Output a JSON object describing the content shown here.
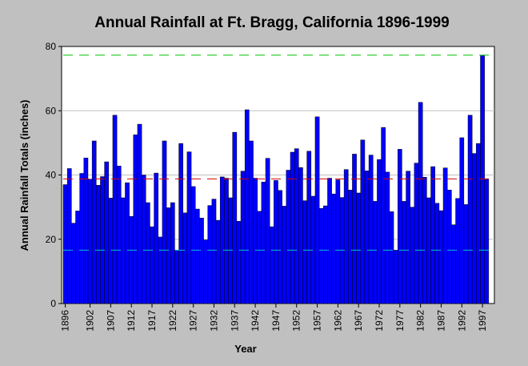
{
  "chart_data": {
    "type": "bar",
    "title": "Annual Rainfall at Ft. Bragg, California 1896-1999",
    "xlabel": "Year",
    "ylabel": "Annual Rainfall Totals (inches)",
    "ylim": [
      0,
      80
    ],
    "yticks": [
      "0",
      "20",
      "40",
      "60",
      "80"
    ],
    "xticks": [
      "1896",
      "1902",
      "1907",
      "1912",
      "1917",
      "1922",
      "1927",
      "1932",
      "1937",
      "1942",
      "1947",
      "1952",
      "1957",
      "1962",
      "1967",
      "1972",
      "1977",
      "1982",
      "1987",
      "1992",
      "1997"
    ],
    "grid": "horizontal",
    "years": [
      1896,
      1897,
      1898,
      1899,
      1900,
      1901,
      1902,
      1903,
      1904,
      1905,
      1906,
      1907,
      1908,
      1909,
      1910,
      1911,
      1912,
      1913,
      1914,
      1915,
      1916,
      1917,
      1918,
      1919,
      1920,
      1921,
      1922,
      1923,
      1924,
      1925,
      1926,
      1927,
      1928,
      1929,
      1930,
      1931,
      1932,
      1933,
      1934,
      1935,
      1936,
      1937,
      1938,
      1939,
      1940,
      1941,
      1942,
      1943,
      1944,
      1945,
      1946,
      1947,
      1948,
      1949,
      1950,
      1951,
      1952,
      1953,
      1954,
      1955,
      1956,
      1957,
      1958,
      1959,
      1960,
      1961,
      1962,
      1963,
      1964,
      1965,
      1966,
      1967,
      1968,
      1969,
      1970,
      1971,
      1972,
      1973,
      1974,
      1975,
      1976,
      1977,
      1978,
      1979,
      1980,
      1981,
      1982,
      1983,
      1984,
      1985,
      1986,
      1987,
      1988,
      1989,
      1990,
      1991,
      1992,
      1993,
      1994,
      1995,
      1996,
      1997,
      1998,
      1999
    ],
    "values": [
      37.0,
      42.0,
      25.0,
      28.8,
      40.5,
      45.3,
      38.7,
      50.6,
      36.8,
      39.5,
      44.1,
      32.8,
      58.6,
      42.8,
      32.9,
      37.6,
      27.1,
      52.5,
      55.8,
      40.0,
      31.4,
      23.9,
      40.6,
      20.7,
      50.6,
      29.8,
      31.4,
      16.6,
      49.8,
      28.2,
      47.2,
      36.4,
      29.4,
      26.6,
      19.8,
      30.5,
      32.5,
      25.9,
      39.4,
      39.0,
      32.9,
      53.3,
      25.6,
      41.2,
      60.3,
      50.6,
      39.0,
      28.7,
      37.8,
      45.2,
      23.9,
      38.3,
      35.2,
      30.3,
      41.5,
      47.1,
      48.2,
      42.3,
      32.0,
      47.4,
      33.4,
      58.1,
      29.6,
      30.4,
      39.0,
      34.1,
      38.5,
      33.0,
      41.7,
      35.3,
      46.5,
      34.4,
      50.9,
      41.3,
      46.2,
      31.8,
      44.8,
      54.8,
      40.9,
      28.6,
      16.6,
      48.0,
      31.8,
      41.2,
      30.0,
      43.7,
      62.6,
      39.3,
      32.9,
      42.6,
      31.2,
      28.9,
      42.2,
      35.3,
      24.5,
      32.7,
      51.6,
      30.8,
      58.6,
      46.7,
      49.8,
      77.3,
      38.8,
      0
    ],
    "reference_lines": [
      {
        "value": 77.3,
        "color": "#00c000"
      },
      {
        "value": 38.8,
        "color": "#d00000"
      },
      {
        "value": 16.6,
        "color": "#00c0c0"
      }
    ],
    "colors": {
      "bar": "#0000ff",
      "background": "#c0c0c0",
      "plot_bg": "#ffffff",
      "grid": "#c0c0c0"
    }
  }
}
